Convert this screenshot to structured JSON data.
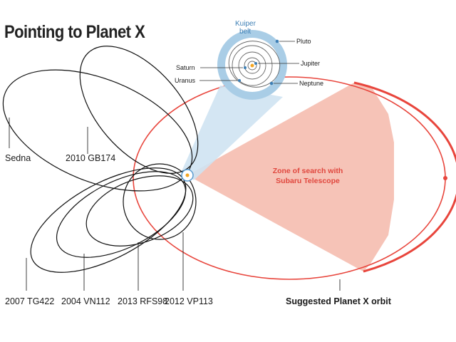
{
  "title": "Pointing to Planet X",
  "colors": {
    "orbit": "#111111",
    "planet_x": "#e8453c",
    "search_zone": "#f5b8aa",
    "kuiper": "#a9cde6",
    "sun": "#f4a623"
  },
  "inset": {
    "kuiper_label_1": "Kuiper",
    "kuiper_label_2": "belt",
    "planets": {
      "pluto": "Pluto",
      "jupiter": "Jupiter",
      "saturn": "Saturn",
      "uranus": "Uranus",
      "neptune": "Neptune"
    }
  },
  "objects": {
    "sedna": "Sedna",
    "gb174": "2010 GB174",
    "tg422": "2007 TG422",
    "vn112": "2004 VN112",
    "rfs98": "2013 RFS98",
    "vp113": "2012 VP113"
  },
  "search_zone_label_1": "Zone of search with",
  "search_zone_label_2": "Subaru Telescope",
  "planet_x_label": "Suggested Planet X orbit"
}
